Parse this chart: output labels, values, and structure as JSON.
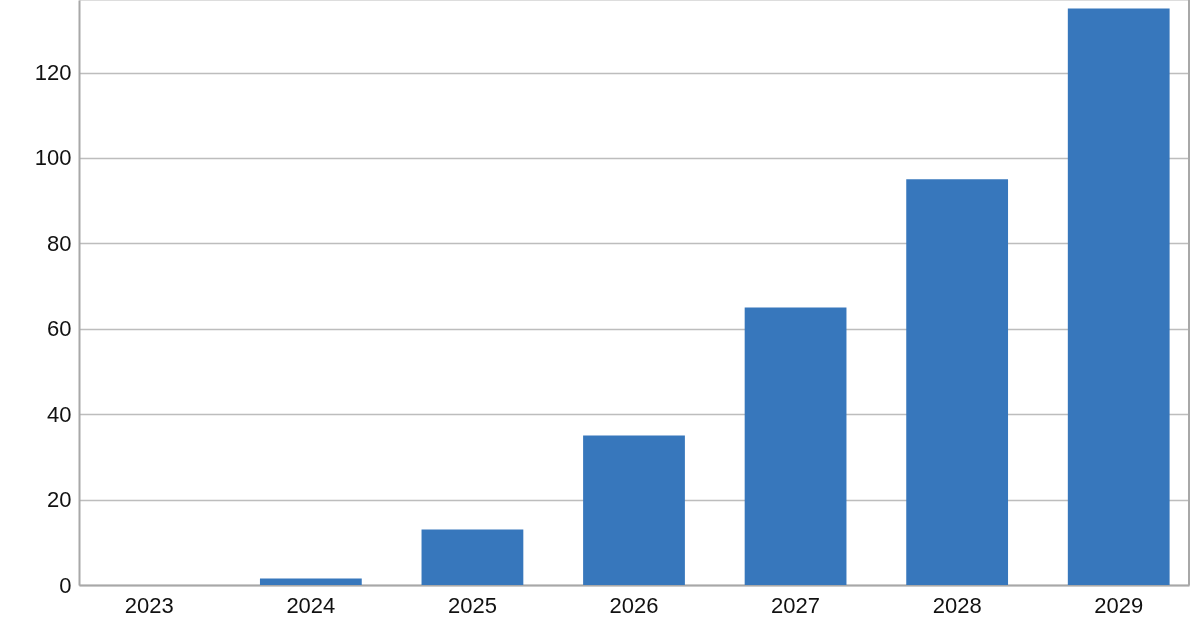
{
  "chart_data": {
    "type": "bar",
    "categories": [
      "2023",
      "2024",
      "2025",
      "2026",
      "2027",
      "2028",
      "2029"
    ],
    "values": [
      0,
      1.5,
      13,
      35,
      65,
      95,
      135
    ],
    "color": "#3777bc",
    "ylim": [
      0,
      137
    ],
    "yticks": [
      0,
      20,
      40,
      60,
      80,
      100,
      120
    ],
    "grid": "y"
  }
}
